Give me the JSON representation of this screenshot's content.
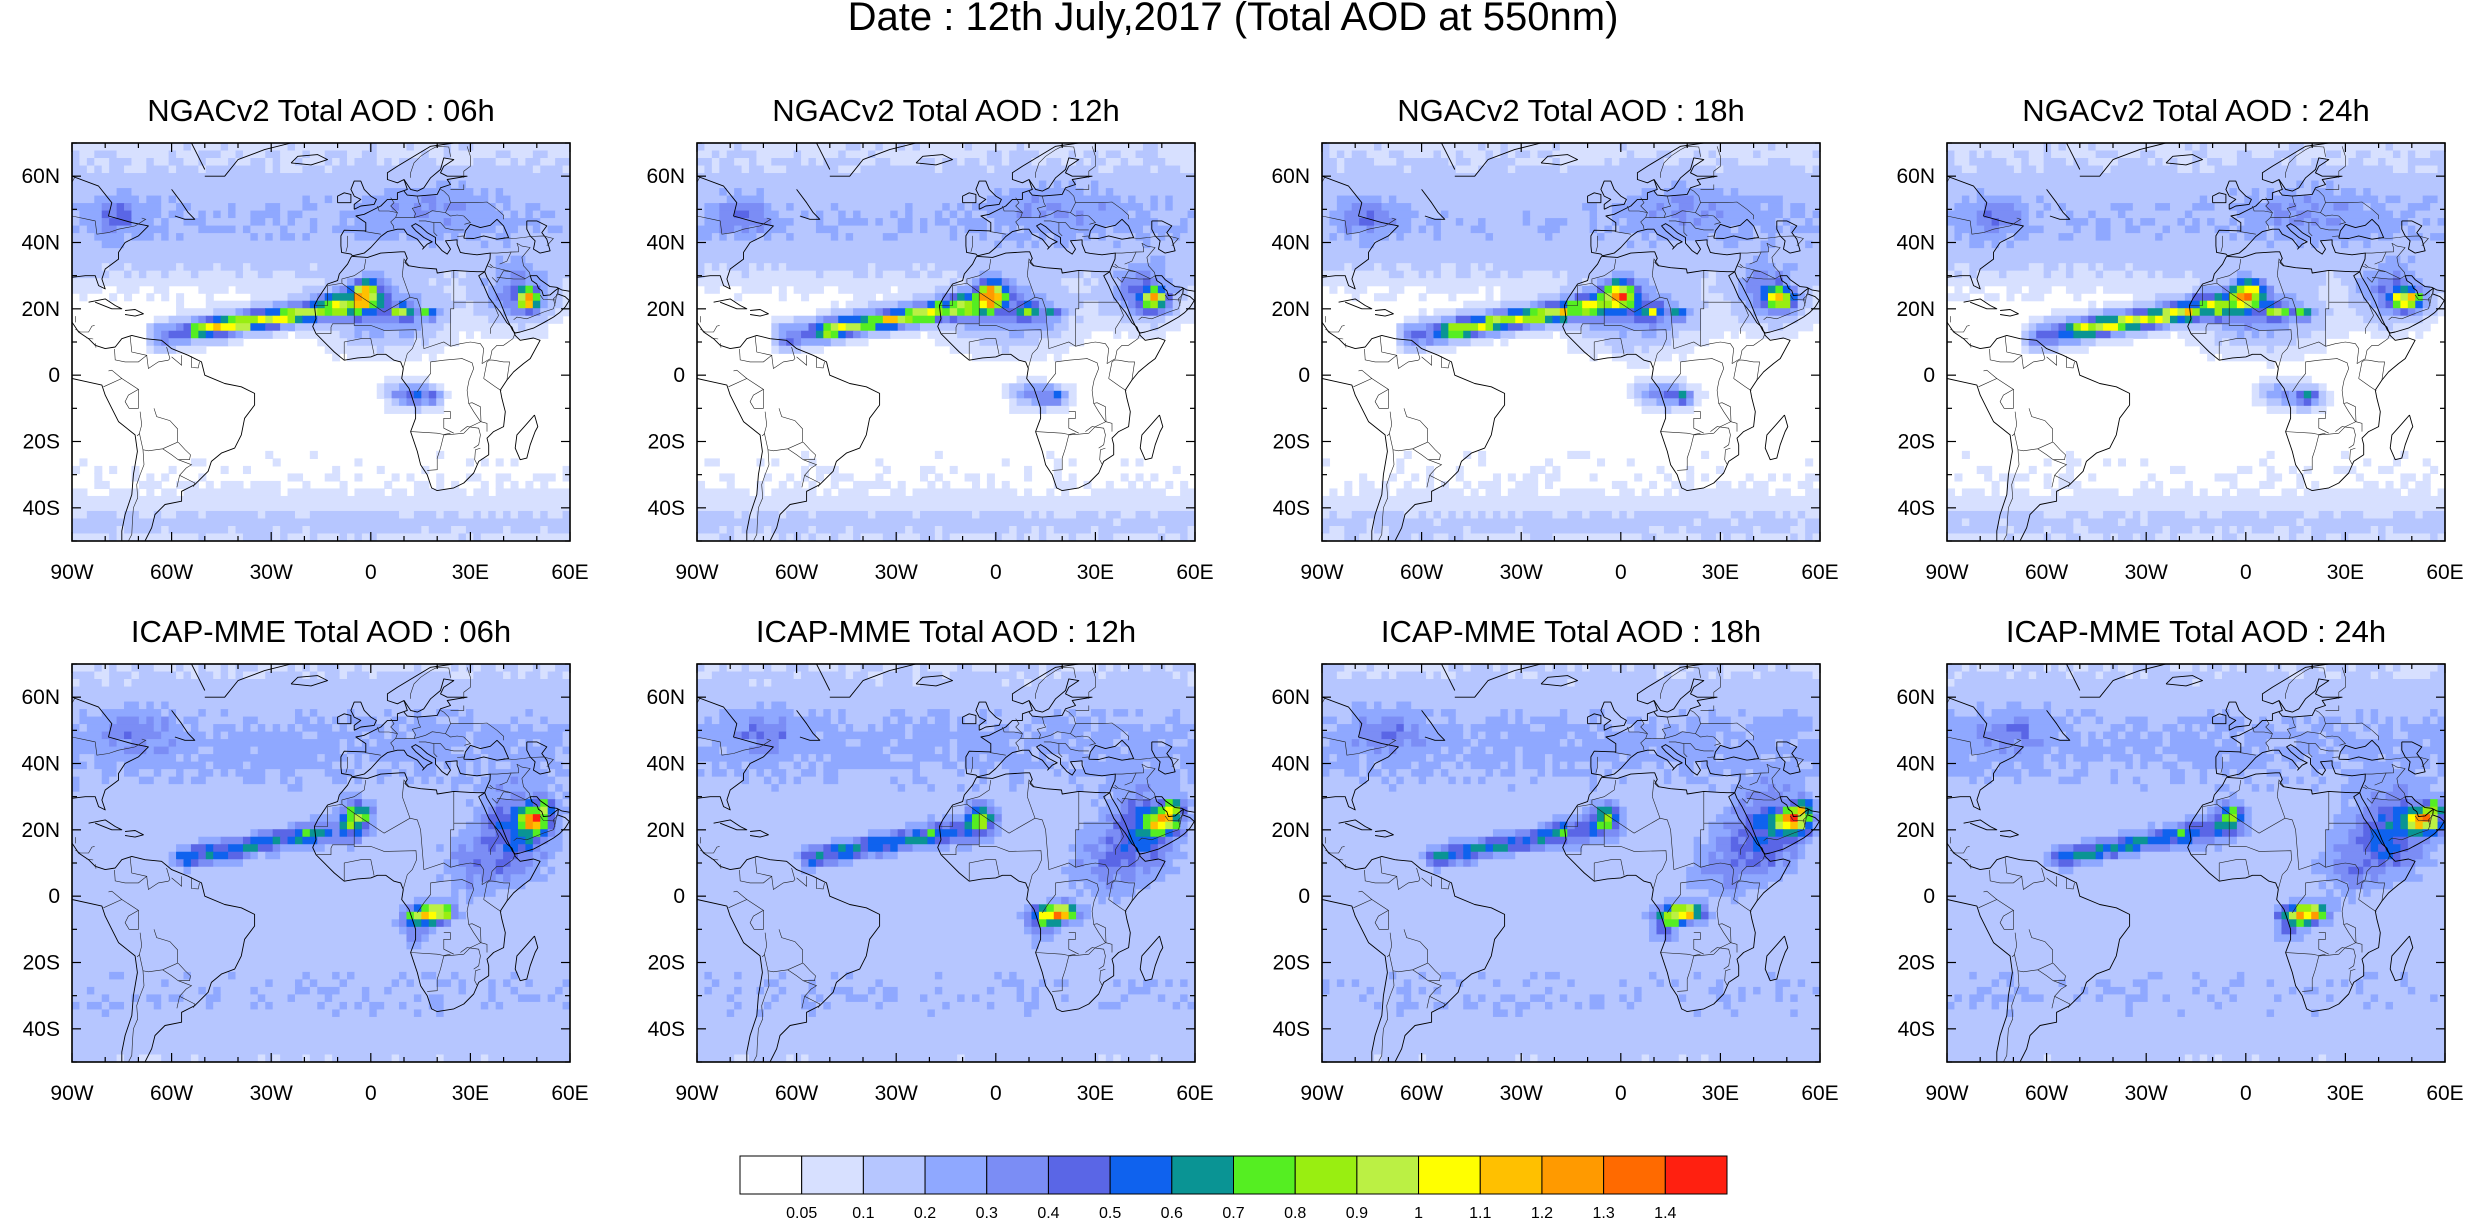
{
  "title": "Date : 12th July,2017 (Total AOD at 550nm)",
  "panels": [
    {
      "title": "NGACv2 Total AOD : 06h",
      "model": "ngac",
      "lead": 0
    },
    {
      "title": "NGACv2 Total AOD : 12h",
      "model": "ngac",
      "lead": 1
    },
    {
      "title": "NGACv2 Total AOD : 18h",
      "model": "ngac",
      "lead": 2
    },
    {
      "title": "NGACv2 Total AOD : 24h",
      "model": "ngac",
      "lead": 3
    },
    {
      "title": "ICAP-MME Total AOD : 06h",
      "model": "icap",
      "lead": 0
    },
    {
      "title": "ICAP-MME Total AOD : 12h",
      "model": "icap",
      "lead": 1
    },
    {
      "title": "ICAP-MME Total AOD : 18h",
      "model": "icap",
      "lead": 2
    },
    {
      "title": "ICAP-MME Total AOD : 24h",
      "model": "icap",
      "lead": 3
    }
  ],
  "map": {
    "lon_range": [
      -90,
      60
    ],
    "lat_range": [
      -50,
      70
    ],
    "lon_ticks": [
      {
        "value": -90,
        "label": "90W"
      },
      {
        "value": -60,
        "label": "60W"
      },
      {
        "value": -30,
        "label": "30W"
      },
      {
        "value": 0,
        "label": "0"
      },
      {
        "value": 30,
        "label": "30E"
      },
      {
        "value": 60,
        "label": "60E"
      }
    ],
    "lat_ticks": [
      {
        "value": 60,
        "label": "60N"
      },
      {
        "value": 40,
        "label": "40N"
      },
      {
        "value": 20,
        "label": "20N"
      },
      {
        "value": 0,
        "label": "0"
      },
      {
        "value": -20,
        "label": "20S"
      },
      {
        "value": -40,
        "label": "40S"
      }
    ]
  },
  "colorbar": {
    "labels": [
      "0.05",
      "0.1",
      "0.2",
      "0.3",
      "0.4",
      "0.5",
      "0.6",
      "0.7",
      "0.8",
      "0.9",
      "1",
      "1.1",
      "1.2",
      "1.3",
      "1.4"
    ],
    "colors": [
      "#ffffff",
      "#d7e0ff",
      "#b6c6ff",
      "#8fa8ff",
      "#7b8df5",
      "#5a66e6",
      "#0f62ee",
      "#0a9494",
      "#55ee22",
      "#99ee11",
      "#bbf044",
      "#ffff00",
      "#ffc000",
      "#ff9a00",
      "#ff6a00",
      "#ff2010"
    ]
  }
}
